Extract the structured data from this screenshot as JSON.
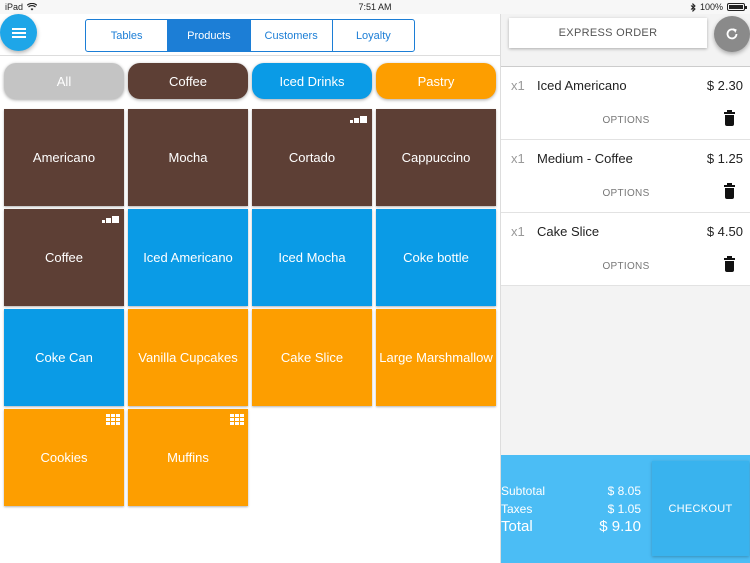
{
  "status": {
    "device": "iPad",
    "time": "7:51 AM",
    "battery": "100%"
  },
  "nav": {
    "tabs": [
      "Tables",
      "Products",
      "Customers",
      "Loyalty"
    ],
    "active": "Products"
  },
  "categories": [
    {
      "label": "All",
      "color": "#c4c4c4"
    },
    {
      "label": "Coffee",
      "color": "#5d3f35"
    },
    {
      "label": "Iced Drinks",
      "color": "#0a9be6"
    },
    {
      "label": "Pastry",
      "color": "#fd9e00"
    }
  ],
  "colors": {
    "coffee": "#5d3f35",
    "iced": "#0a9be6",
    "pastry": "#fd9e00",
    "accent": "#1c7ed6",
    "totals": "#4bbdf5"
  },
  "products": [
    {
      "label": "Americano",
      "category": "coffee",
      "badge": ""
    },
    {
      "label": "Mocha",
      "category": "coffee",
      "badge": ""
    },
    {
      "label": "Cortado",
      "category": "coffee",
      "badge": "size-icon"
    },
    {
      "label": "Cappuccino",
      "category": "coffee",
      "badge": ""
    },
    {
      "label": "Coffee",
      "category": "coffee",
      "badge": "size-icon"
    },
    {
      "label": "Iced Americano",
      "category": "iced",
      "badge": ""
    },
    {
      "label": "Iced Mocha",
      "category": "iced",
      "badge": ""
    },
    {
      "label": "Coke bottle",
      "category": "iced",
      "badge": ""
    },
    {
      "label": "Coke Can",
      "category": "iced",
      "badge": ""
    },
    {
      "label": "Vanilla Cupcakes",
      "category": "pastry",
      "badge": ""
    },
    {
      "label": "Cake Slice",
      "category": "pastry",
      "badge": ""
    },
    {
      "label": "Large Marshmallow",
      "category": "pastry",
      "badge": ""
    },
    {
      "label": "Cookies",
      "category": "pastry",
      "badge": "grid-icon"
    },
    {
      "label": "Muffins",
      "category": "pastry",
      "badge": "grid-icon"
    }
  ],
  "order": {
    "express_label": "EXPRESS ORDER",
    "options_label": "OPTIONS",
    "items": [
      {
        "qty": "x1",
        "name": "Iced Americano",
        "price": "$ 2.30"
      },
      {
        "qty": "x1",
        "name": "Medium - Coffee",
        "price": "$ 1.25"
      },
      {
        "qty": "x1",
        "name": "Cake Slice",
        "price": "$ 4.50"
      }
    ]
  },
  "totals": {
    "subtotal_label": "Subtotal",
    "subtotal": "$ 8.05",
    "taxes_label": "Taxes",
    "taxes": "$ 1.05",
    "total_label": "Total",
    "total": "$ 9.10",
    "checkout_label": "CHECKOUT"
  }
}
